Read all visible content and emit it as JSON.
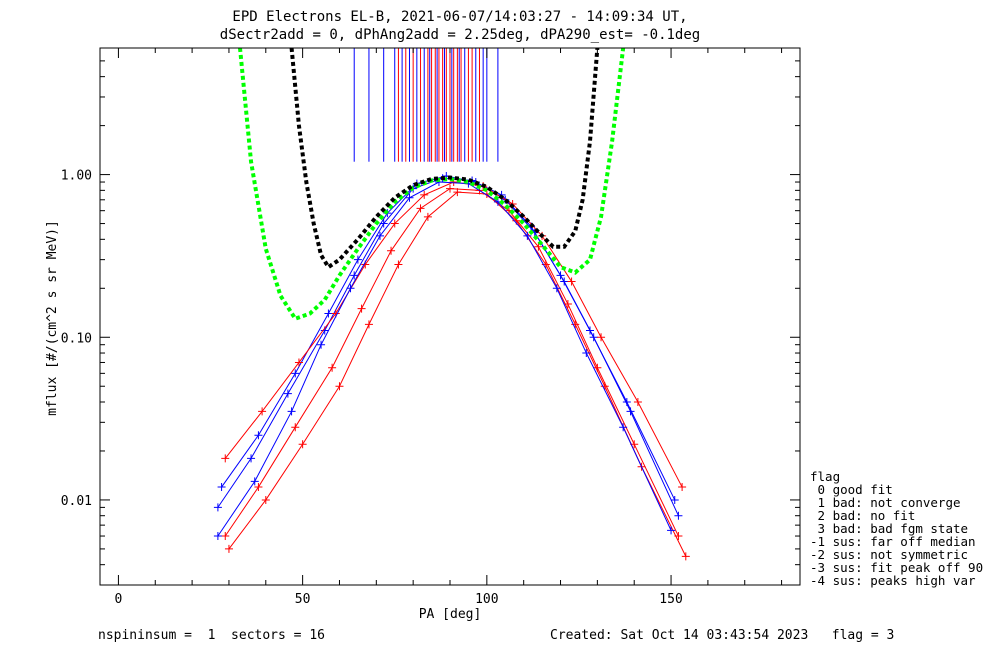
{
  "title_line1": "EPD Electrons EL-B, 2021-06-07/14:03:27 - 14:09:34 UT,",
  "title_line2": "dSectr2add = 0, dPhAng2add = 2.25deg, dPA290_est=  -0.1deg",
  "footer": {
    "left": "nspininsum =  1  sectors = 16",
    "right": "Created: Sat Oct 14 03:43:54 2023   flag = 3"
  },
  "legend": {
    "title": "flag",
    "items": [
      " 0 good fit",
      " 1 bad: not converge",
      " 2 bad: no fit",
      " 3 bad: bad fgm state",
      "-1 sus: far off median",
      "-2 sus: not symmetric",
      "-3 sus: fit peak off 90",
      "-4 sus: peaks high var"
    ]
  },
  "colors": {
    "red": "#ff0000",
    "blue": "#0000ff",
    "green": "#00ff00",
    "black": "#000000"
  },
  "chart_data": {
    "type": "line",
    "title": "EPD Electrons EL-B, 2021-06-07/14:03:27 - 14:09:34 UT, dSectr2add = 0, dPhAng2add = 2.25deg, dPA290_est=  -0.1deg",
    "xlabel": "PA [deg]",
    "ylabel": "mflux [#/(cm^2 s sr MeV)]",
    "xlim": [
      -5,
      185
    ],
    "ylim": [
      0.003,
      6.0
    ],
    "yscale": "log",
    "xticks": [
      0,
      50,
      100,
      150
    ],
    "yticks": [
      {
        "value": 0.01,
        "label": "0.01"
      },
      {
        "value": 0.1,
        "label": "0.10"
      },
      {
        "value": 1.0,
        "label": "1.00"
      }
    ],
    "series": [
      {
        "color": "red",
        "style": "line+plus",
        "x": [
          29,
          38,
          48,
          58,
          66,
          74,
          82,
          90,
          98,
          106,
          114,
          122,
          130,
          140,
          152
        ],
        "y": [
          0.006,
          0.012,
          0.028,
          0.065,
          0.15,
          0.34,
          0.62,
          0.82,
          0.8,
          0.6,
          0.36,
          0.16,
          0.065,
          0.022,
          0.006
        ]
      },
      {
        "color": "blue",
        "style": "line+plus",
        "x": [
          27,
          36,
          46,
          56,
          64,
          72,
          80,
          88,
          96,
          104,
          112,
          120,
          128,
          138,
          151
        ],
        "y": [
          0.009,
          0.018,
          0.045,
          0.11,
          0.24,
          0.5,
          0.82,
          0.95,
          0.92,
          0.75,
          0.48,
          0.24,
          0.11,
          0.04,
          0.01
        ]
      },
      {
        "color": "red",
        "style": "line+plus",
        "x": [
          30,
          40,
          50,
          60,
          68,
          76,
          84,
          92,
          100,
          108,
          116,
          124,
          132,
          142,
          154
        ],
        "y": [
          0.005,
          0.01,
          0.022,
          0.05,
          0.12,
          0.28,
          0.55,
          0.78,
          0.76,
          0.52,
          0.28,
          0.12,
          0.05,
          0.016,
          0.0045
        ]
      },
      {
        "color": "blue",
        "style": "line+plus",
        "x": [
          28,
          38,
          48,
          57,
          65,
          73,
          81,
          89,
          97,
          105,
          113,
          121,
          129,
          139,
          152
        ],
        "y": [
          0.012,
          0.025,
          0.06,
          0.14,
          0.3,
          0.58,
          0.88,
          0.98,
          0.9,
          0.7,
          0.44,
          0.22,
          0.1,
          0.035,
          0.008
        ]
      },
      {
        "color": "red",
        "style": "line+plus",
        "x": [
          29,
          39,
          49,
          59,
          67,
          75,
          83,
          91,
          99,
          107,
          115,
          123,
          131,
          141,
          153
        ],
        "y": [
          0.018,
          0.035,
          0.07,
          0.14,
          0.28,
          0.5,
          0.75,
          0.9,
          0.85,
          0.66,
          0.42,
          0.22,
          0.1,
          0.04,
          0.012
        ]
      },
      {
        "color": "blue",
        "style": "line+plus",
        "x": [
          27,
          37,
          47,
          55,
          63,
          71,
          79,
          87,
          95,
          103,
          111,
          119,
          127,
          137,
          150
        ],
        "y": [
          0.006,
          0.013,
          0.035,
          0.09,
          0.2,
          0.42,
          0.72,
          0.9,
          0.88,
          0.68,
          0.42,
          0.2,
          0.08,
          0.028,
          0.0065
        ]
      }
    ],
    "fits": [
      {
        "color": "green",
        "style": "dashed",
        "x": [
          33,
          36,
          40,
          44,
          48,
          52,
          56,
          60,
          65,
          70,
          75,
          80,
          85,
          90,
          95,
          100,
          105,
          110,
          115,
          120,
          124,
          128,
          131,
          134,
          137
        ],
        "y": [
          6.0,
          1.2,
          0.35,
          0.18,
          0.13,
          0.14,
          0.17,
          0.24,
          0.35,
          0.5,
          0.68,
          0.83,
          0.92,
          0.94,
          0.9,
          0.8,
          0.65,
          0.5,
          0.37,
          0.27,
          0.25,
          0.3,
          0.55,
          1.6,
          6.0
        ]
      },
      {
        "color": "black",
        "style": "dashed",
        "x": [
          47,
          49,
          51,
          53,
          55,
          57,
          60,
          65,
          70,
          75,
          80,
          85,
          90,
          95,
          100,
          105,
          110,
          115,
          118,
          121,
          124,
          126,
          128,
          130
        ],
        "y": [
          6.0,
          2.0,
          0.9,
          0.5,
          0.32,
          0.27,
          0.3,
          0.4,
          0.55,
          0.72,
          0.86,
          0.94,
          0.96,
          0.93,
          0.84,
          0.7,
          0.55,
          0.42,
          0.36,
          0.36,
          0.45,
          0.7,
          1.6,
          6.0
        ]
      }
    ],
    "verticals": {
      "red": [
        76,
        78,
        80,
        82,
        84,
        85,
        86,
        87,
        88,
        89,
        90,
        91,
        92,
        93,
        95,
        96,
        98
      ],
      "blue": [
        64,
        68,
        72,
        75,
        77,
        79,
        81,
        83,
        84.5,
        86.5,
        88.5,
        90.5,
        92.5,
        94,
        97,
        99,
        100,
        103
      ]
    }
  }
}
